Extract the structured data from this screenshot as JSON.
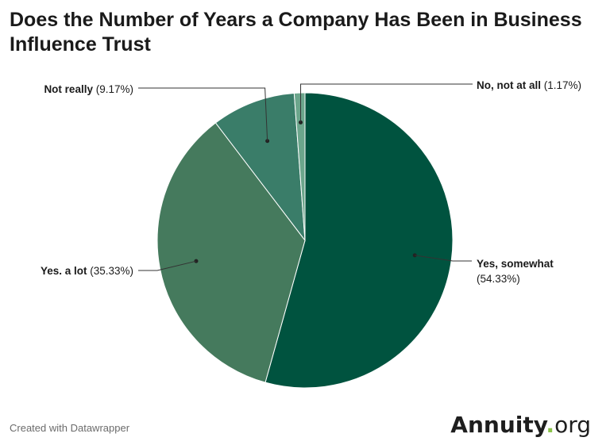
{
  "chart_data": {
    "type": "pie",
    "title": "Does the Number of Years a Company Has Been in Business Influence Trust",
    "slices": [
      {
        "label": "Yes, somewhat",
        "value": 54.33,
        "value_text": "(54.33%)",
        "color": "#00533f"
      },
      {
        "label": "Yes. a lot",
        "value": 35.33,
        "value_text": "(35.33%)",
        "color": "#457a5d"
      },
      {
        "label": "Not really",
        "value": 9.17,
        "value_text": "(9.17%)",
        "color": "#3a7d69"
      },
      {
        "label": "No, not at all",
        "value": 1.17,
        "value_text": "(1.17%)",
        "color": "#6ca68c"
      }
    ]
  },
  "footer": {
    "credit": "Created with Datawrapper",
    "brand_bold": "Annuity",
    "brand_dot": ".",
    "brand_rest": "org"
  }
}
